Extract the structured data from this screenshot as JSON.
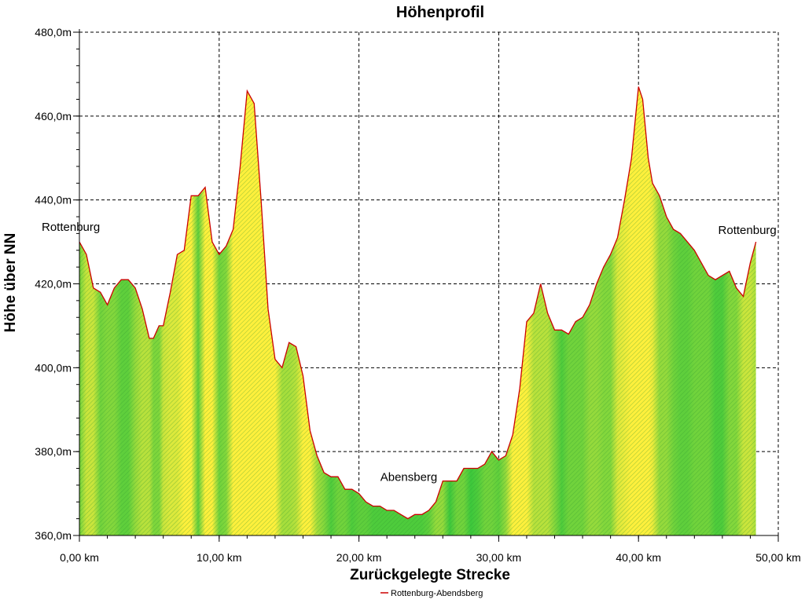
{
  "chart_data": {
    "type": "area",
    "title": "Höhenprofil",
    "xlabel": "Zurückgelegte Strecke",
    "ylabel": "Höhe über NN",
    "xlim": [
      0,
      50
    ],
    "ylim": [
      360,
      480
    ],
    "x_ticks": [
      0,
      10,
      20,
      30,
      40,
      50
    ],
    "x_tick_labels": [
      "0,00 km",
      "10,00 km",
      "20,00 km",
      "30,00 km",
      "40,00 km",
      "50,00 km"
    ],
    "y_ticks": [
      360,
      380,
      400,
      420,
      440,
      460,
      480
    ],
    "y_tick_labels": [
      "360,0m",
      "380,0m",
      "400,0m",
      "420,0m",
      "440,0m",
      "460,0m",
      "480,0m"
    ],
    "grid": true,
    "legend_position": "bottom-center",
    "series": [
      {
        "name": "Rottenburg-Abendsberg",
        "line_color": "#cc0000",
        "x": [
          0,
          0.5,
          1,
          1.5,
          2,
          2.5,
          3,
          3.5,
          4,
          4.5,
          5,
          5.3,
          5.7,
          6,
          6.5,
          7,
          7.5,
          8,
          8.5,
          9,
          9.5,
          10,
          10.5,
          11,
          11.5,
          12,
          12.5,
          13,
          13.5,
          14,
          14.5,
          15,
          15.5,
          16,
          16.5,
          17,
          17.5,
          18,
          18.5,
          19,
          19.5,
          20,
          20.5,
          21,
          21.5,
          22,
          22.5,
          23,
          23.5,
          24,
          24.5,
          25,
          25.5,
          26,
          26.5,
          27,
          27.5,
          28,
          28.5,
          29,
          29.5,
          30,
          30.5,
          31,
          31.5,
          32,
          32.5,
          33,
          33.5,
          34,
          34.5,
          35,
          35.5,
          36,
          36.5,
          37,
          37.5,
          38,
          38.5,
          39,
          39.5,
          40,
          40.3,
          40.7,
          41,
          41.5,
          42,
          42.5,
          43,
          43.5,
          44,
          44.5,
          45,
          45.5,
          46,
          46.5,
          47,
          47.5,
          48,
          48.4
        ],
        "y": [
          430,
          427,
          419,
          418,
          415,
          419,
          421,
          421,
          419,
          414,
          407,
          407,
          410,
          410,
          418,
          427,
          428,
          441,
          441,
          443,
          430,
          427,
          429,
          433,
          448,
          466,
          463,
          440,
          414,
          402,
          400,
          406,
          405,
          398,
          385,
          379,
          375,
          374,
          374,
          371,
          371,
          370,
          368,
          367,
          367,
          366,
          366,
          365,
          364,
          365,
          365,
          366,
          368,
          373,
          373,
          373,
          376,
          376,
          376,
          377,
          380,
          378,
          379,
          384,
          395,
          411,
          413,
          420,
          413,
          409,
          409,
          408,
          411,
          412,
          415,
          420,
          424,
          427,
          431,
          440,
          450,
          467,
          464,
          450,
          444,
          441,
          436,
          433,
          432,
          430,
          428,
          425,
          422,
          421,
          422,
          423,
          419,
          417,
          425,
          430
        ],
        "annotations": [
          {
            "text": "Rottenburg",
            "x": 0,
            "y": 430
          },
          {
            "text": "Abensberg",
            "x": 24,
            "y": 364
          },
          {
            "text": "Rottenburg",
            "x": 48.4,
            "y": 430
          }
        ]
      }
    ]
  }
}
